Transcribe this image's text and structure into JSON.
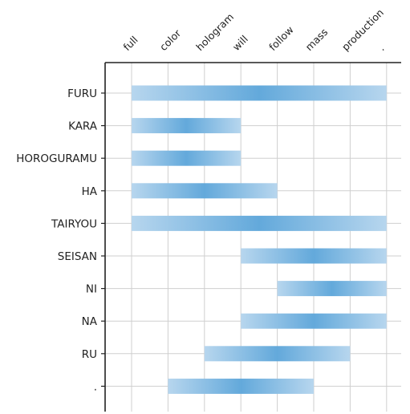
{
  "diagram": {
    "columns": [
      "full",
      "color",
      "hologram",
      "will",
      "follow",
      "mass",
      "production",
      "."
    ],
    "rows": [
      {
        "label": "FURU",
        "start": 0,
        "end": 7
      },
      {
        "label": "KARA",
        "start": 0,
        "end": 3
      },
      {
        "label": "HOROGURAMU",
        "start": 0,
        "end": 3
      },
      {
        "label": "HA",
        "start": 0,
        "end": 4
      },
      {
        "label": "TAIRYOU",
        "start": 0,
        "end": 7
      },
      {
        "label": "SEISAN",
        "start": 3,
        "end": 7
      },
      {
        "label": "NI",
        "start": 4,
        "end": 7
      },
      {
        "label": "NA",
        "start": 3,
        "end": 7
      },
      {
        "label": "RU",
        "start": 2,
        "end": 6
      },
      {
        "label": ".",
        "start": 1,
        "end": 5
      }
    ],
    "colors": {
      "bar_light": "#b7d6ee",
      "bar_dark": "#63a9db",
      "grid": "#cfcfcf",
      "axis": "#222222"
    }
  }
}
